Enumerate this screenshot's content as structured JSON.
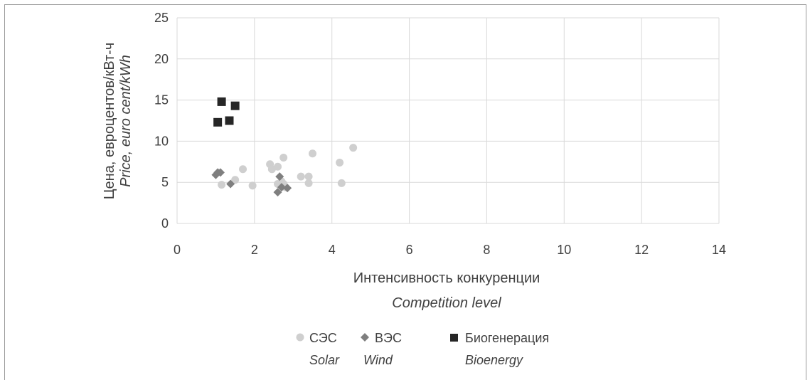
{
  "chart_data": {
    "type": "scatter",
    "xlabel": "Интенсивность конкуренции",
    "xlabel_en": "Competition level",
    "ylabel": "Цена, евроцентов/кВт-ч",
    "ylabel_en": "Price, euro cent/kWh",
    "xlim": [
      0,
      14
    ],
    "ylim": [
      0,
      25
    ],
    "xticks": [
      0,
      2,
      4,
      6,
      8,
      10,
      12,
      14
    ],
    "yticks": [
      0,
      5,
      10,
      15,
      20,
      25
    ],
    "grid": "vertical and horizontal major gridlines",
    "legend_position": "bottom",
    "series": [
      {
        "name": "СЭС",
        "name_en": "Solar",
        "marker": "circle",
        "color": "#cfcfcf",
        "points": [
          [
            1.15,
            4.7
          ],
          [
            1.5,
            5.3
          ],
          [
            1.7,
            6.6
          ],
          [
            1.95,
            4.6
          ],
          [
            2.4,
            7.2
          ],
          [
            2.45,
            6.6
          ],
          [
            2.6,
            6.9
          ],
          [
            2.6,
            4.8
          ],
          [
            2.7,
            5.1
          ],
          [
            2.75,
            8.0
          ],
          [
            2.75,
            4.8
          ],
          [
            2.8,
            4.4
          ],
          [
            3.2,
            5.7
          ],
          [
            3.4,
            5.7
          ],
          [
            3.4,
            4.9
          ],
          [
            3.5,
            8.5
          ],
          [
            4.2,
            7.4
          ],
          [
            4.25,
            4.9
          ],
          [
            4.55,
            9.2
          ]
        ]
      },
      {
        "name": "ВЭС",
        "name_en": "Wind",
        "marker": "diamond",
        "color": "#7f7f7f",
        "points": [
          [
            1.0,
            5.9
          ],
          [
            1.05,
            6.2
          ],
          [
            1.12,
            6.2
          ],
          [
            1.38,
            4.8
          ],
          [
            2.6,
            3.8
          ],
          [
            2.65,
            5.7
          ],
          [
            2.7,
            4.4
          ],
          [
            2.85,
            4.3
          ]
        ]
      },
      {
        "name": "Биогенерация",
        "name_en": "Bioenergy",
        "marker": "square",
        "color": "#262626",
        "points": [
          [
            1.05,
            12.3
          ],
          [
            1.15,
            14.8
          ],
          [
            1.35,
            12.5
          ],
          [
            1.5,
            14.3
          ]
        ]
      }
    ]
  }
}
